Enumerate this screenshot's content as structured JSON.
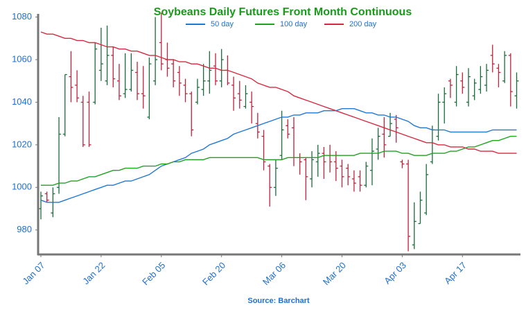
{
  "chart_data": {
    "type": "ohlc",
    "title": "Soybeans Daily Futures Front Month Continuous",
    "source": "Source: Barchart",
    "categories": [
      "Jan 07",
      null,
      null,
      null,
      null,
      null,
      null,
      null,
      null,
      null,
      "Jan 22",
      null,
      null,
      null,
      null,
      null,
      null,
      null,
      null,
      null,
      "Feb 05",
      null,
      null,
      null,
      null,
      null,
      null,
      null,
      null,
      null,
      "Feb 20",
      null,
      null,
      null,
      null,
      null,
      null,
      null,
      null,
      null,
      "Mar 06",
      null,
      null,
      null,
      null,
      null,
      null,
      null,
      null,
      null,
      "Mar 20",
      null,
      null,
      null,
      null,
      null,
      null,
      null,
      null,
      null,
      "Apr 03",
      null,
      null,
      null,
      null,
      null,
      null,
      null,
      null,
      null,
      "Apr 17",
      null,
      null,
      null,
      null,
      null,
      null,
      null,
      null,
      null
    ],
    "up_color": "#1a6b3a",
    "down_color": "#c0203a",
    "open": [
      990,
      997,
      988,
      1000,
      1025,
      1052,
      1048,
      1040,
      1040,
      1040,
      1055,
      1050,
      1062,
      1050,
      1044,
      1046,
      1054,
      1044,
      1033,
      1050,
      1068,
      1060,
      1058,
      1054,
      1048,
      1044,
      1040,
      1046,
      1050,
      1057,
      1050,
      1055,
      1048,
      1044,
      1038,
      1040,
      1030,
      1024,
      1010,
      1000,
      1015,
      1029,
      1028,
      1014,
      1013,
      1004,
      1012,
      1016,
      1015,
      1012,
      1010,
      1009,
      1004,
      1005,
      1001,
      1008,
      1018,
      1025,
      1024,
      1032,
      1012,
      1011,
      973,
      983,
      988,
      1012,
      1024,
      1040,
      1050,
      1040,
      1050,
      1040,
      1043,
      1046,
      1048,
      1062,
      1056,
      1050,
      1062,
      1043
    ],
    "high": [
      998,
      998,
      1000,
      1033,
      1053,
      1064,
      1055,
      1043,
      1045,
      1068,
      1075,
      1076,
      1066,
      1058,
      1063,
      1063,
      1059,
      1057,
      1061,
      1080,
      1082,
      1068,
      1060,
      1057,
      1051,
      1045,
      1051,
      1058,
      1064,
      1063,
      1065,
      1062,
      1052,
      1050,
      1048,
      1045,
      1035,
      1027,
      1011,
      1013,
      1036,
      1032,
      1033,
      1016,
      1014,
      1017,
      1020,
      1019,
      1020,
      1017,
      1013,
      1011,
      1008,
      1008,
      1012,
      1023,
      1028,
      1033,
      1035,
      1034,
      1013,
      1013,
      993,
      998,
      1011,
      1029,
      1044,
      1047,
      1051,
      1057,
      1054,
      1056,
      1051,
      1057,
      1058,
      1067,
      1058,
      1064,
      1063,
      1054
    ],
    "low": [
      985,
      993,
      986,
      997,
      1024,
      1040,
      1040,
      1019,
      1019,
      1039,
      1050,
      1048,
      1047,
      1041,
      1042,
      1045,
      1041,
      1037,
      1032,
      1048,
      1055,
      1052,
      1047,
      1043,
      1040,
      1024,
      1039,
      1043,
      1044,
      1048,
      1047,
      1048,
      1036,
      1037,
      1037,
      1030,
      1023,
      1008,
      991,
      996,
      1013,
      1023,
      1010,
      1006,
      994,
      1000,
      1005,
      1004,
      1007,
      1003,
      1000,
      1001,
      998,
      998,
      1000,
      1001,
      1013,
      1014,
      1024,
      1021,
      1009,
      970,
      971,
      983,
      987,
      1011,
      1022,
      1030,
      1042,
      1038,
      1044,
      1038,
      1041,
      1044,
      1045,
      1054,
      1047,
      1049,
      1038,
      1037
    ],
    "close": [
      996,
      994,
      997,
      1025,
      1053,
      1047,
      1042,
      1020,
      1020,
      1065,
      1058,
      1062,
      1051,
      1043,
      1046,
      1055,
      1044,
      1043,
      1058,
      1060,
      1058,
      1056,
      1050,
      1049,
      1044,
      1027,
      1047,
      1050,
      1055,
      1050,
      1060,
      1049,
      1042,
      1041,
      1044,
      1038,
      1026,
      1012,
      1000,
      1009,
      1027,
      1025,
      1014,
      1012,
      1005,
      1013,
      1016,
      1012,
      1012,
      1009,
      1005,
      1005,
      1002,
      1001,
      1010,
      1017,
      1024,
      1020,
      1030,
      1028,
      1011,
      977,
      984,
      994,
      1006,
      1027,
      1040,
      1044,
      1048,
      1053,
      1047,
      1052,
      1049,
      1052,
      1055,
      1058,
      1054,
      1062,
      1045,
      1050
    ],
    "series": [
      {
        "name": "50 day",
        "color": "#1f77d4",
        "values": [
          994,
          993,
          993,
          993,
          994,
          995,
          996,
          997,
          998,
          999,
          1000,
          1001,
          1001,
          1002,
          1003,
          1003,
          1004,
          1005,
          1006,
          1008,
          1010,
          1011,
          1012,
          1013,
          1014,
          1016,
          1017,
          1018,
          1020,
          1021,
          1022,
          1023,
          1025,
          1026,
          1027,
          1028,
          1029,
          1030,
          1031,
          1032,
          1033,
          1033,
          1034,
          1034,
          1035,
          1035,
          1035,
          1036,
          1036,
          1036,
          1037,
          1037,
          1037,
          1036,
          1035,
          1035,
          1034,
          1034,
          1033,
          1033,
          1032,
          1031,
          1029,
          1028,
          1028,
          1027,
          1027,
          1027,
          1026,
          1026,
          1026,
          1026,
          1026,
          1026,
          1026,
          1027,
          1027,
          1027,
          1027,
          1027
        ]
      },
      {
        "name": "100 day",
        "color": "#22a022",
        "values": [
          1001,
          1001,
          1001,
          1002,
          1002,
          1003,
          1003,
          1004,
          1005,
          1005,
          1006,
          1007,
          1008,
          1008,
          1009,
          1009,
          1009,
          1010,
          1010,
          1010,
          1011,
          1011,
          1012,
          1012,
          1013,
          1013,
          1013,
          1013,
          1014,
          1014,
          1014,
          1014,
          1014,
          1014,
          1014,
          1014,
          1014,
          1013,
          1013,
          1013,
          1013,
          1014,
          1014,
          1014,
          1014,
          1014,
          1014,
          1015,
          1015,
          1015,
          1015,
          1015,
          1015,
          1016,
          1016,
          1016,
          1016,
          1017,
          1017,
          1017,
          1016,
          1016,
          1015,
          1015,
          1015,
          1016,
          1016,
          1016,
          1017,
          1017,
          1018,
          1019,
          1019,
          1020,
          1021,
          1022,
          1022,
          1023,
          1024,
          1024
        ]
      },
      {
        "name": "200 day",
        "color": "#d6283f",
        "values": [
          1073,
          1072,
          1072,
          1071,
          1070,
          1070,
          1069,
          1069,
          1068,
          1068,
          1067,
          1066,
          1066,
          1065,
          1065,
          1064,
          1064,
          1063,
          1062,
          1062,
          1061,
          1060,
          1060,
          1059,
          1059,
          1058,
          1058,
          1057,
          1056,
          1056,
          1055,
          1055,
          1054,
          1053,
          1052,
          1051,
          1049,
          1048,
          1047,
          1047,
          1046,
          1045,
          1043,
          1042,
          1041,
          1040,
          1039,
          1038,
          1037,
          1036,
          1035,
          1034,
          1033,
          1032,
          1031,
          1030,
          1029,
          1028,
          1027,
          1026,
          1025,
          1024,
          1023,
          1022,
          1021,
          1021,
          1020,
          1020,
          1019,
          1019,
          1019,
          1018,
          1018,
          1017,
          1017,
          1017,
          1016,
          1016,
          1016,
          1016
        ]
      }
    ],
    "ylim": [
      968.5,
      1081.5
    ],
    "yticks": [
      980,
      1000,
      1020,
      1040,
      1060,
      1080
    ]
  }
}
